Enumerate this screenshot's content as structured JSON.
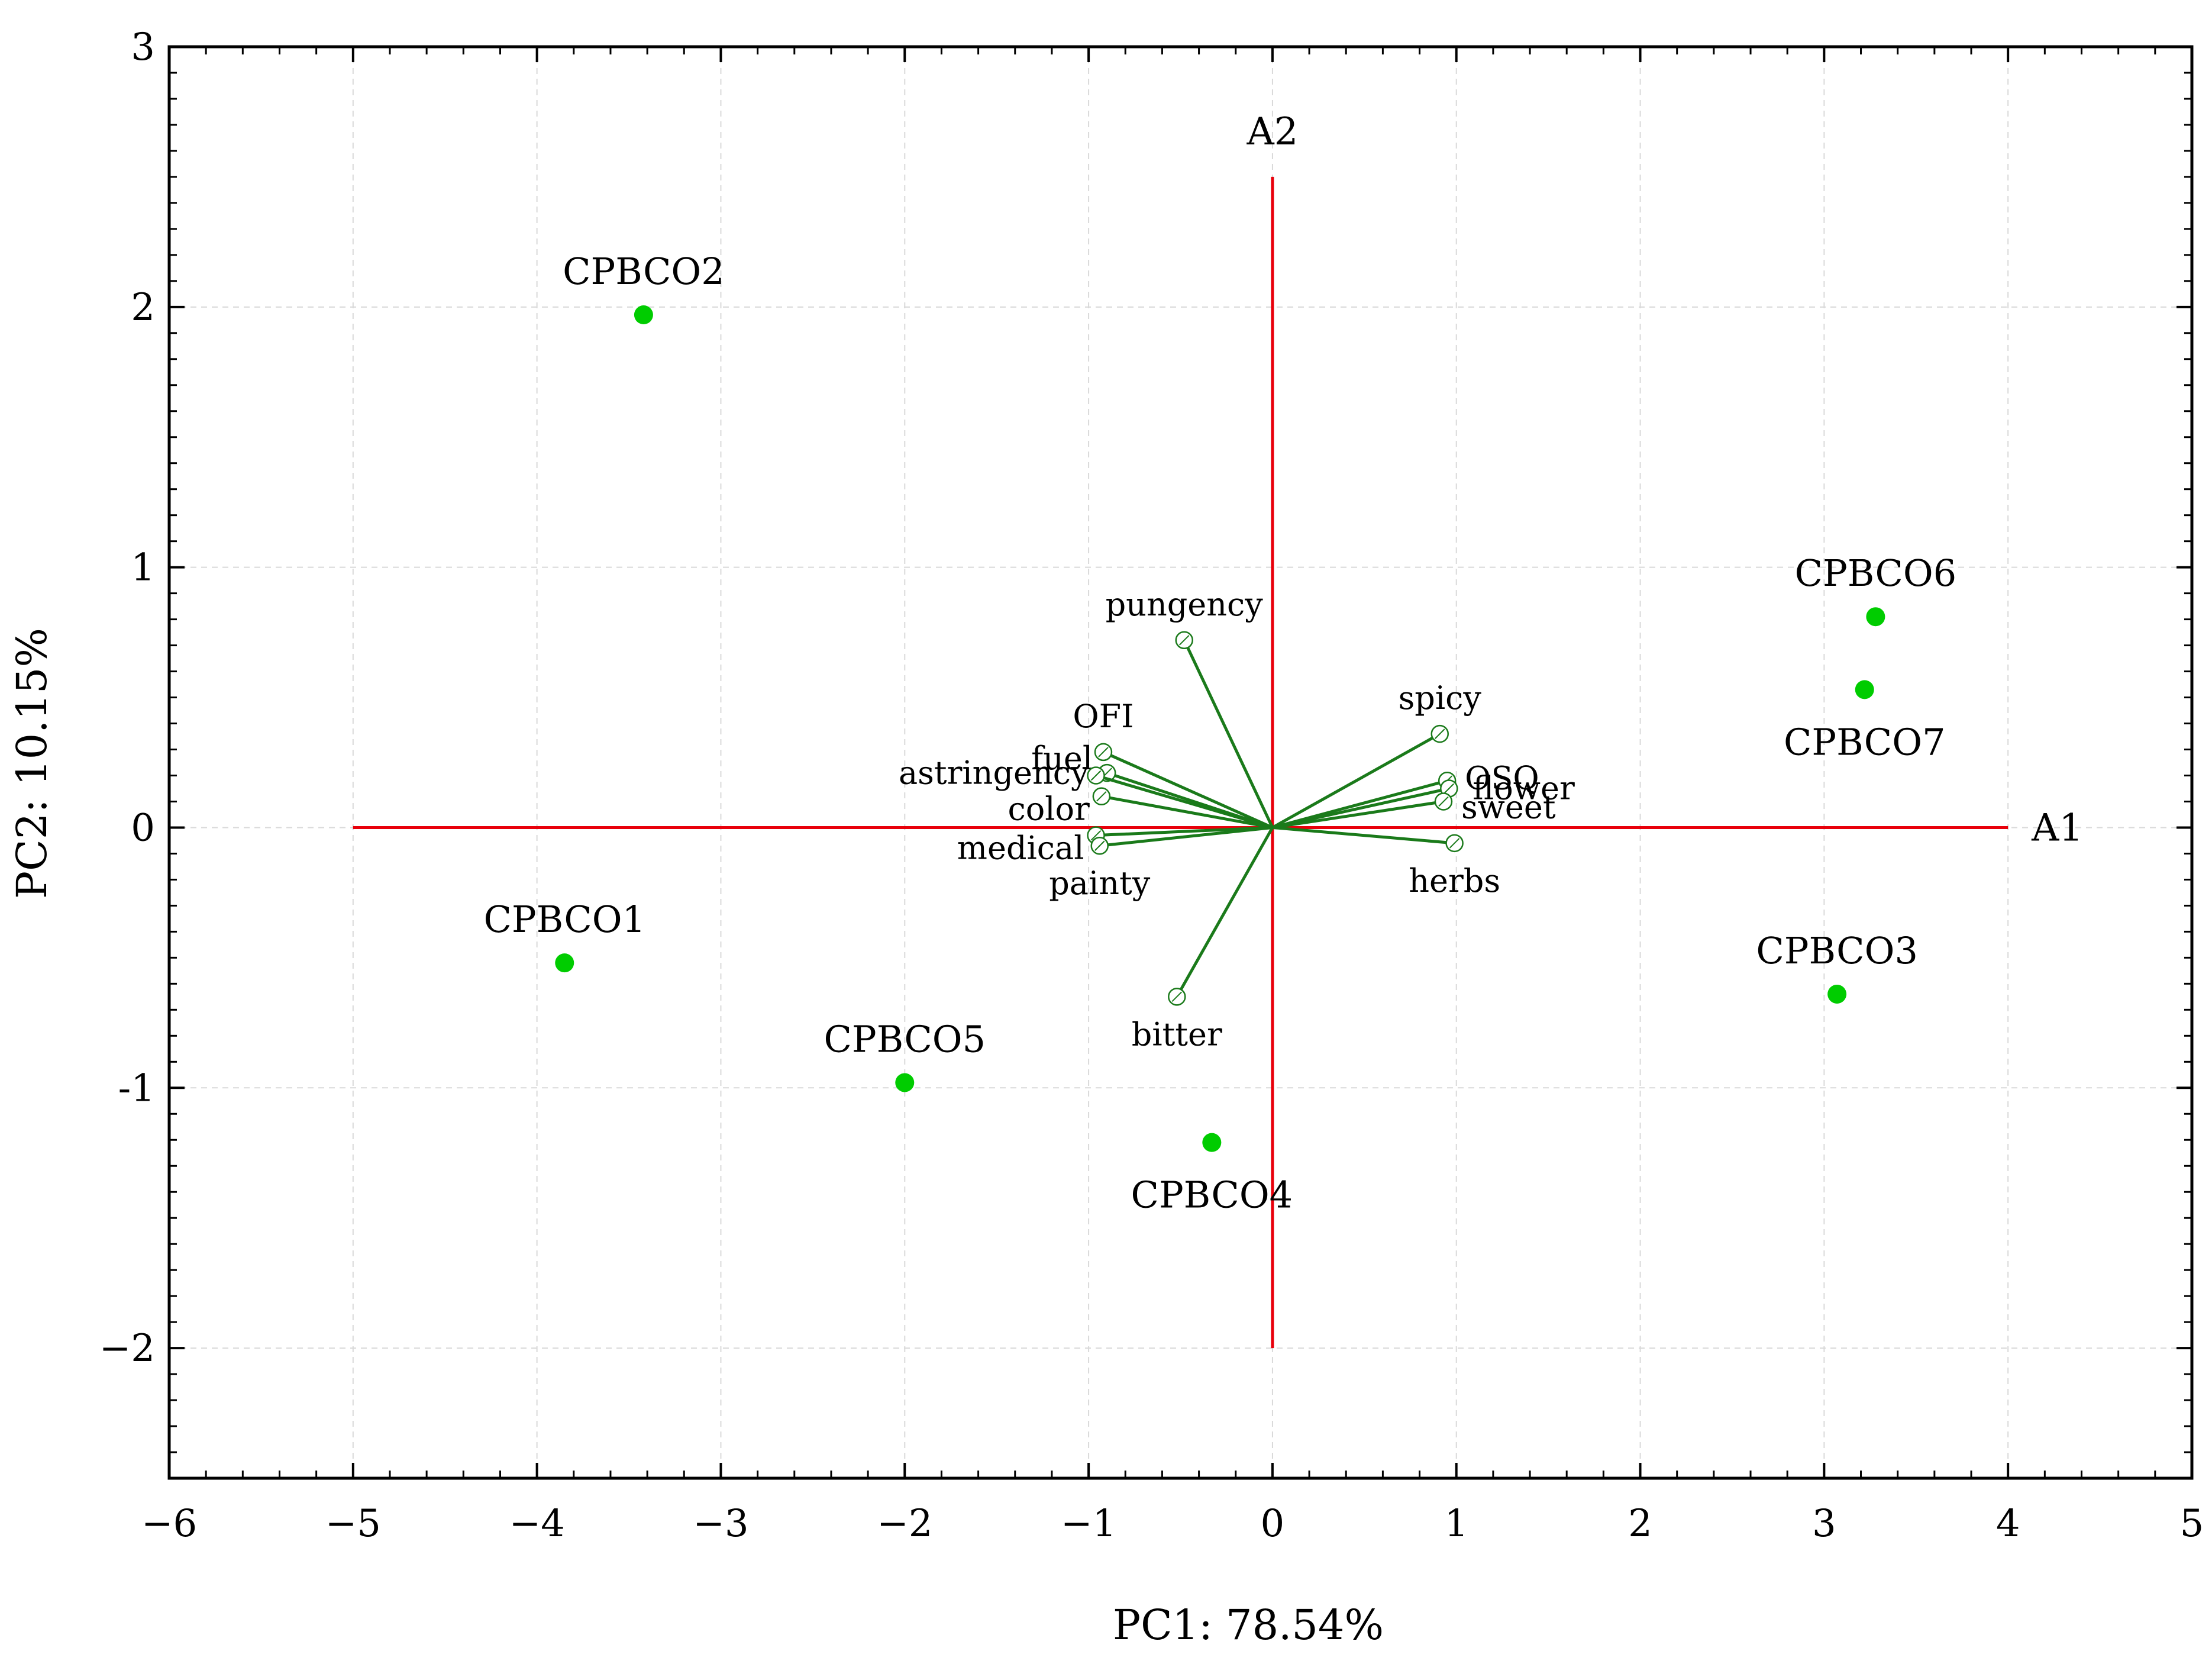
{
  "chart_data": {
    "type": "scatter",
    "subtype": "pca-biplot",
    "title": "",
    "xlabel": "PC1: 78.54%",
    "ylabel": "PC2: 10.15%",
    "xlim": [
      -6,
      5
    ],
    "ylim": [
      -2.5,
      3
    ],
    "xticks": [
      -6,
      -5,
      -4,
      -3,
      -2,
      -1,
      0,
      1,
      2,
      3,
      4,
      5
    ],
    "xtick_labels": [
      "−6",
      "−5",
      "−4",
      "−3",
      "−2",
      "−1",
      "0",
      "1",
      "2",
      "3",
      "4",
      "5"
    ],
    "yticks": [
      -2,
      -1,
      0,
      1,
      2,
      3
    ],
    "ytick_labels": [
      "−2",
      "-1",
      "0",
      "1",
      "2",
      "3"
    ],
    "grid": true,
    "reference_axes": [
      {
        "name": "A1",
        "from": [
          -5,
          0
        ],
        "to": [
          4,
          0
        ],
        "color": "#e8000b"
      },
      {
        "name": "A2",
        "from": [
          0,
          -2
        ],
        "to": [
          0,
          2.5
        ],
        "color": "#e8000b"
      }
    ],
    "scores": {
      "color": "#00cc00",
      "points": [
        {
          "label": "CPBCO1",
          "x": -3.85,
          "y": -0.52,
          "label_pos": "above"
        },
        {
          "label": "CPBCO2",
          "x": -3.42,
          "y": 1.97,
          "label_pos": "above"
        },
        {
          "label": "CPBCO3",
          "x": 3.07,
          "y": -0.64,
          "label_pos": "above"
        },
        {
          "label": "CPBCO4",
          "x": -0.33,
          "y": -1.21,
          "label_pos": "below"
        },
        {
          "label": "CPBCO5",
          "x": -2.0,
          "y": -0.98,
          "label_pos": "above"
        },
        {
          "label": "CPBCO6",
          "x": 3.28,
          "y": 0.81,
          "label_pos": "above"
        },
        {
          "label": "CPBCO7",
          "x": 3.22,
          "y": 0.53,
          "label_pos": "below"
        }
      ]
    },
    "loadings": {
      "color": "#1a7a1a",
      "vectors": [
        {
          "label": "pungency",
          "x": -0.48,
          "y": 0.72,
          "label_pos": "above"
        },
        {
          "label": "OFI",
          "x": -0.92,
          "y": 0.29,
          "label_pos": "above"
        },
        {
          "label": "fuel",
          "x": -0.9,
          "y": 0.21,
          "label_pos": "left-up"
        },
        {
          "label": "astringency",
          "x": -0.96,
          "y": 0.2,
          "label_pos": "left"
        },
        {
          "label": "color",
          "x": -0.93,
          "y": 0.12,
          "label_pos": "left-down"
        },
        {
          "label": "medical",
          "x": -0.96,
          "y": -0.03,
          "label_pos": "left-down"
        },
        {
          "label": "painty",
          "x": -0.94,
          "y": -0.07,
          "label_pos": "below"
        },
        {
          "label": "bitter",
          "x": -0.52,
          "y": -0.65,
          "label_pos": "below"
        },
        {
          "label": "spicy",
          "x": 0.91,
          "y": 0.36,
          "label_pos": "above"
        },
        {
          "label": "OSQ",
          "x": 0.95,
          "y": 0.18,
          "label_pos": "right-up"
        },
        {
          "label": "flower",
          "x": 0.96,
          "y": 0.15,
          "label_pos": "right"
        },
        {
          "label": "sweet",
          "x": 0.93,
          "y": 0.1,
          "label_pos": "right-down"
        },
        {
          "label": "herbs",
          "x": 0.99,
          "y": -0.06,
          "label_pos": "below"
        }
      ]
    }
  }
}
